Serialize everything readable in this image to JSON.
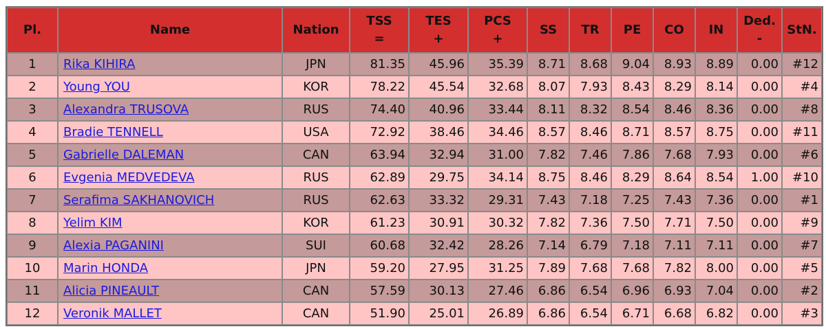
{
  "headers": {
    "pl": "Pl.",
    "name": "Name",
    "nation": "Nation",
    "tss": [
      "TSS",
      "="
    ],
    "tes": [
      "TES",
      "+"
    ],
    "pcs": [
      "PCS",
      "+"
    ],
    "ss": "SS",
    "tr": "TR",
    "pe": "PE",
    "co": "CO",
    "in": "IN",
    "ded": [
      "Ded.",
      "-"
    ],
    "stn": "StN."
  },
  "rows": [
    {
      "pl": "1",
      "name": "Rika KIHIRA",
      "nation": "JPN",
      "tss": "81.35",
      "tes": "45.96",
      "pcs": "35.39",
      "ss": "8.71",
      "tr": "8.68",
      "pe": "9.04",
      "co": "8.93",
      "in": "8.89",
      "ded": "0.00",
      "stn": "#12"
    },
    {
      "pl": "2",
      "name": "Young YOU",
      "nation": "KOR",
      "tss": "78.22",
      "tes": "45.54",
      "pcs": "32.68",
      "ss": "8.07",
      "tr": "7.93",
      "pe": "8.43",
      "co": "8.29",
      "in": "8.14",
      "ded": "0.00",
      "stn": "#4"
    },
    {
      "pl": "3",
      "name": "Alexandra TRUSOVA",
      "nation": "RUS",
      "tss": "74.40",
      "tes": "40.96",
      "pcs": "33.44",
      "ss": "8.11",
      "tr": "8.32",
      "pe": "8.54",
      "co": "8.46",
      "in": "8.36",
      "ded": "0.00",
      "stn": "#8"
    },
    {
      "pl": "4",
      "name": "Bradie TENNELL",
      "nation": "USA",
      "tss": "72.92",
      "tes": "38.46",
      "pcs": "34.46",
      "ss": "8.57",
      "tr": "8.46",
      "pe": "8.71",
      "co": "8.57",
      "in": "8.75",
      "ded": "0.00",
      "stn": "#11"
    },
    {
      "pl": "5",
      "name": "Gabrielle DALEMAN",
      "nation": "CAN",
      "tss": "63.94",
      "tes": "32.94",
      "pcs": "31.00",
      "ss": "7.82",
      "tr": "7.46",
      "pe": "7.86",
      "co": "7.68",
      "in": "7.93",
      "ded": "0.00",
      "stn": "#6"
    },
    {
      "pl": "6",
      "name": "Evgenia MEDVEDEVA",
      "nation": "RUS",
      "tss": "62.89",
      "tes": "29.75",
      "pcs": "34.14",
      "ss": "8.75",
      "tr": "8.46",
      "pe": "8.29",
      "co": "8.64",
      "in": "8.54",
      "ded": "1.00",
      "stn": "#10"
    },
    {
      "pl": "7",
      "name": "Serafima SAKHANOVICH",
      "nation": "RUS",
      "tss": "62.63",
      "tes": "33.32",
      "pcs": "29.31",
      "ss": "7.43",
      "tr": "7.18",
      "pe": "7.25",
      "co": "7.43",
      "in": "7.36",
      "ded": "0.00",
      "stn": "#1"
    },
    {
      "pl": "8",
      "name": "Yelim KIM",
      "nation": "KOR",
      "tss": "61.23",
      "tes": "30.91",
      "pcs": "30.32",
      "ss": "7.82",
      "tr": "7.36",
      "pe": "7.50",
      "co": "7.71",
      "in": "7.50",
      "ded": "0.00",
      "stn": "#9"
    },
    {
      "pl": "9",
      "name": "Alexia PAGANINI",
      "nation": "SUI",
      "tss": "60.68",
      "tes": "32.42",
      "pcs": "28.26",
      "ss": "7.14",
      "tr": "6.79",
      "pe": "7.18",
      "co": "7.11",
      "in": "7.11",
      "ded": "0.00",
      "stn": "#7"
    },
    {
      "pl": "10",
      "name": "Marin HONDA",
      "nation": "JPN",
      "tss": "59.20",
      "tes": "27.95",
      "pcs": "31.25",
      "ss": "7.89",
      "tr": "7.68",
      "pe": "7.68",
      "co": "7.82",
      "in": "8.00",
      "ded": "0.00",
      "stn": "#5"
    },
    {
      "pl": "11",
      "name": "Alicia PINEAULT",
      "nation": "CAN",
      "tss": "57.59",
      "tes": "30.13",
      "pcs": "27.46",
      "ss": "6.86",
      "tr": "6.54",
      "pe": "6.96",
      "co": "6.93",
      "in": "7.04",
      "ded": "0.00",
      "stn": "#2"
    },
    {
      "pl": "12",
      "name": "Veronik MALLET",
      "nation": "CAN",
      "tss": "51.90",
      "tes": "25.01",
      "pcs": "26.89",
      "ss": "6.86",
      "tr": "6.54",
      "pe": "6.71",
      "co": "6.68",
      "in": "6.82",
      "ded": "0.00",
      "stn": "#3"
    }
  ],
  "colors": {
    "header_bg": "#d32f2f",
    "row_dark": "#c49a9a",
    "row_light": "#ffc5c5",
    "link": "#1a1ae0"
  }
}
